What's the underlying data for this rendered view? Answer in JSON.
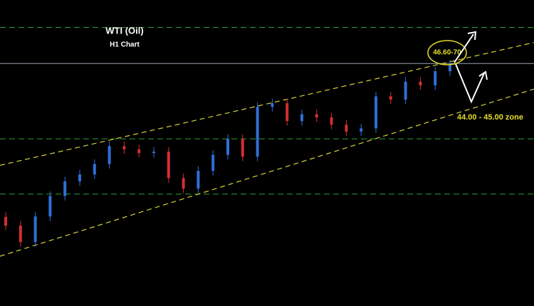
{
  "chart_data": {
    "type": "candlestick",
    "title": "WTI (Oil)",
    "subtitle": "H1 Chart",
    "annotations": [
      "46.60-70",
      "44.00 - 45.00 zone"
    ],
    "ylim": [
      41.34,
      48.04
    ],
    "up_color": "#2f6fd6",
    "down_color": "#d23030",
    "open": [
      43.29,
      43.1,
      42.74,
      43.3,
      43.75,
      44.07,
      44.22,
      44.45,
      44.84,
      44.77,
      44.69,
      44.72,
      44.14,
      43.91,
      44.3,
      44.65,
      45.0,
      44.61,
      45.7,
      45.78,
      45.39,
      45.54,
      45.47,
      45.31,
      45.16,
      45.23,
      45.93,
      45.86,
      46.25,
      46.17,
      46.48
    ],
    "high": [
      43.39,
      43.2,
      43.4,
      43.85,
      44.17,
      44.32,
      44.55,
      44.94,
      44.94,
      44.87,
      44.82,
      44.82,
      44.24,
      44.4,
      44.75,
      45.1,
      45.1,
      45.8,
      45.88,
      45.88,
      45.64,
      45.64,
      45.57,
      45.41,
      45.33,
      46.03,
      46.03,
      46.35,
      46.35,
      46.58,
      46.73
    ],
    "low": [
      43.0,
      42.64,
      42.64,
      43.2,
      43.65,
      43.97,
      44.12,
      44.35,
      44.67,
      44.59,
      44.59,
      44.04,
      43.81,
      43.81,
      44.2,
      44.55,
      44.51,
      44.51,
      45.6,
      45.29,
      45.29,
      45.37,
      45.21,
      45.06,
      45.06,
      45.13,
      45.76,
      45.76,
      46.07,
      46.07,
      46.38
    ],
    "close": [
      43.1,
      42.74,
      43.3,
      43.75,
      44.07,
      44.22,
      44.45,
      44.84,
      44.77,
      44.69,
      44.72,
      44.14,
      43.91,
      44.3,
      44.65,
      45.0,
      44.61,
      45.7,
      45.78,
      45.39,
      45.54,
      45.47,
      45.31,
      45.16,
      45.23,
      45.93,
      45.86,
      46.25,
      46.17,
      46.48,
      46.63
    ],
    "levels": [
      {
        "value": 47.44,
        "color": "#2e9e3a"
      },
      {
        "value": 46.65,
        "color": "#9aa3ad"
      },
      {
        "value": 45.0,
        "color": "#2e9e3a"
      },
      {
        "value": 43.79,
        "color": "#2e9e3a"
      }
    ],
    "trendlines": [
      {
        "start": 44.42,
        "end": 47.11,
        "color": "#d8d23a"
      },
      {
        "start": 42.43,
        "end": 46.09,
        "color": "#d8d23a"
      }
    ]
  }
}
